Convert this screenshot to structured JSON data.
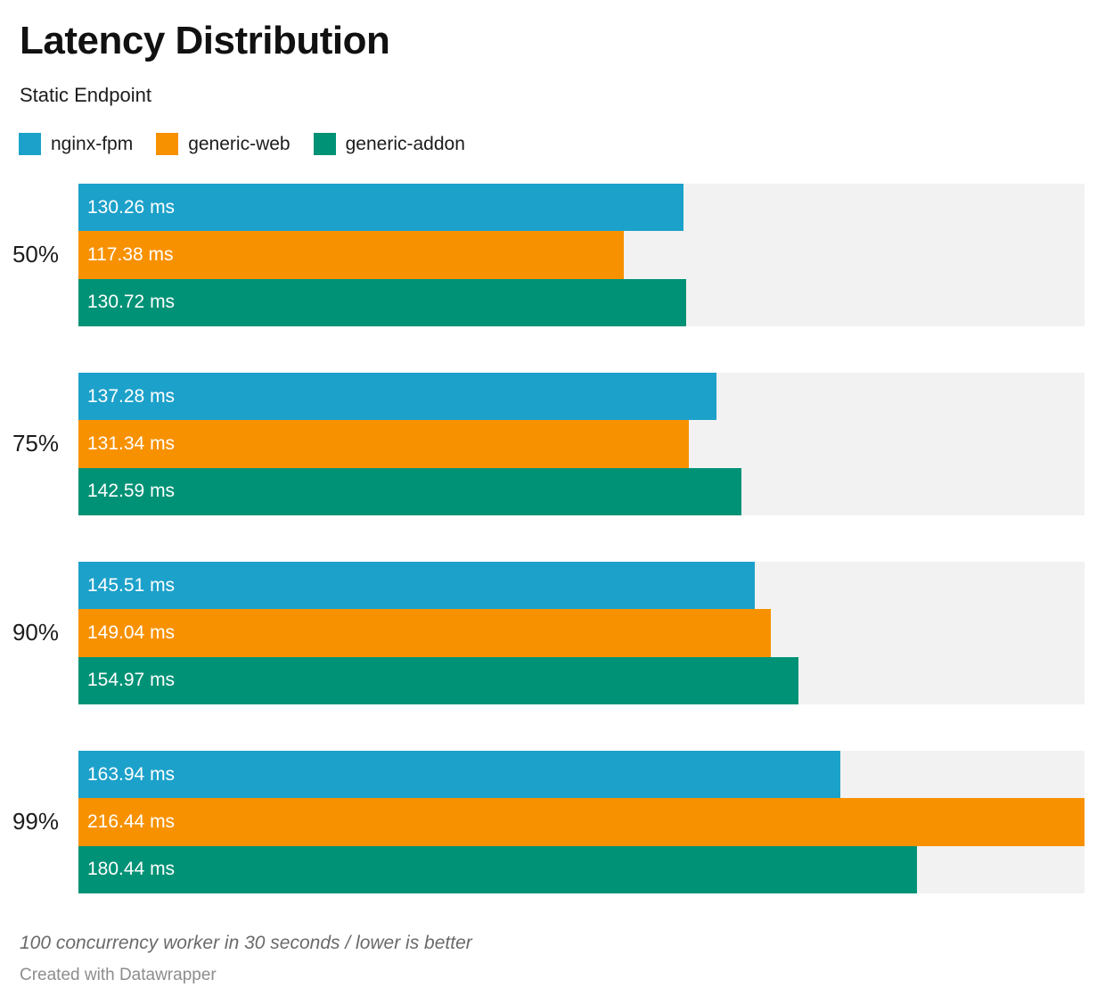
{
  "chart": {
    "title": "Latency Distribution",
    "subtitle": "Static Endpoint",
    "note": "100 concurrency worker in 30 seconds / lower is better",
    "attribution": "Created with Datawrapper"
  },
  "colors": {
    "nginx_fpm": "#1CA1CA",
    "generic_web": "#F89100",
    "generic_addon": "#009276",
    "track_background": "#F2F2F2",
    "bar_label_text": "#FFFFFF"
  },
  "chart_data": {
    "type": "bar",
    "orientation": "horizontal",
    "title": "Latency Distribution",
    "subtitle": "Static Endpoint",
    "unit": "ms",
    "value_suffix": " ms",
    "legend_position": "top",
    "grid": false,
    "xlim": [
      0,
      216.44
    ],
    "categories": [
      "50%",
      "75%",
      "90%",
      "99%"
    ],
    "series": [
      {
        "name": "nginx-fpm",
        "color": "#1CA1CA",
        "values": [
          130.26,
          137.28,
          145.51,
          163.94
        ]
      },
      {
        "name": "generic-web",
        "color": "#F89100",
        "values": [
          117.38,
          131.34,
          149.04,
          216.44
        ]
      },
      {
        "name": "generic-addon",
        "color": "#009276",
        "values": [
          130.72,
          142.59,
          154.97,
          180.44
        ]
      }
    ],
    "note": "100 concurrency worker in 30 seconds / lower is better"
  }
}
